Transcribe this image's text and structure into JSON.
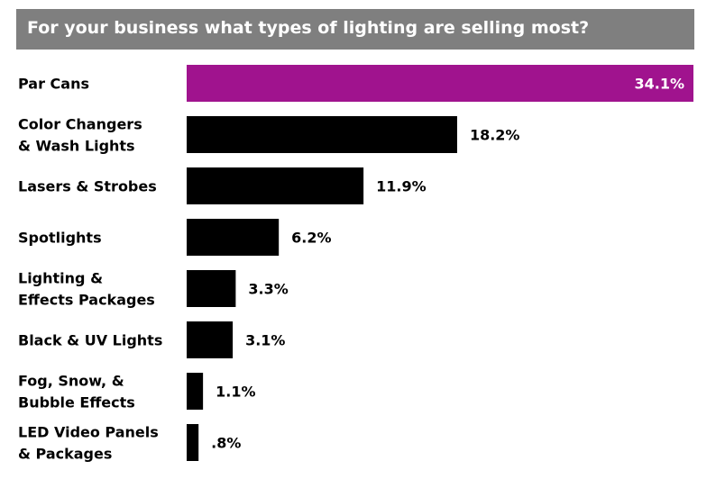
{
  "title": "For your business what types of lighting are selling most?",
  "colors": {
    "title_bg": "#7f7f7f",
    "highlight": "#a0138e",
    "bar": "#000000"
  },
  "chart_data": {
    "type": "bar",
    "orientation": "horizontal",
    "categories": [
      [
        "Par Cans"
      ],
      [
        "Color Changers",
        "& Wash Lights"
      ],
      [
        "Lasers & Strobes"
      ],
      [
        "Spotlights"
      ],
      [
        "Lighting &",
        "Effects Packages"
      ],
      [
        "Black & UV Lights"
      ],
      [
        "Fog, Snow, &",
        "Bubble Effects"
      ],
      [
        "LED Video Panels",
        "& Packages"
      ]
    ],
    "values": [
      34.1,
      18.2,
      11.9,
      6.2,
      3.3,
      3.1,
      1.1,
      0.8
    ],
    "data_labels": [
      "34.1%",
      "18.2%",
      "11.9%",
      "6.2%",
      "3.3%",
      "3.1%",
      "1.1%",
      ".8%"
    ],
    "highlight_index": 0,
    "xlim": [
      0,
      34.1
    ]
  }
}
